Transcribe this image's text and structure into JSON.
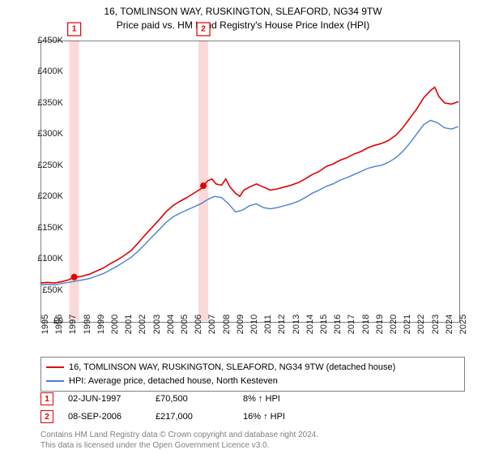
{
  "title_line1": "16, TOMLINSON WAY, RUSKINGTON, SLEAFORD, NG34 9TW",
  "title_line2": "Price paid vs. HM Land Registry's House Price Index (HPI)",
  "chart": {
    "type": "line",
    "background_color": "#ffffff",
    "grid_color": "#e8e8e8",
    "axis_color": "#808080",
    "yaxis": {
      "min": 0,
      "max": 450000,
      "step": 50000,
      "ticks": [
        "£0",
        "£50K",
        "£100K",
        "£150K",
        "£200K",
        "£250K",
        "£300K",
        "£350K",
        "£400K",
        "£450K"
      ],
      "fontsize": 11
    },
    "xaxis": {
      "min": 1995,
      "max": 2025,
      "step": 1,
      "ticks": [
        "1995",
        "1996",
        "1997",
        "1998",
        "1999",
        "2000",
        "2001",
        "2002",
        "2003",
        "2004",
        "2005",
        "2006",
        "2007",
        "2008",
        "2009",
        "2010",
        "2011",
        "2012",
        "2013",
        "2014",
        "2015",
        "2016",
        "2017",
        "2018",
        "2019",
        "2020",
        "2021",
        "2022",
        "2023",
        "2024",
        "2025"
      ],
      "fontsize": 11,
      "rotation": -90
    },
    "series": [
      {
        "name": "16, TOMLINSON WAY, RUSKINGTON, SLEAFORD, NG34 9TW (detached house)",
        "color": "#e00000",
        "line_width": 1.6,
        "data": [
          [
            1995.0,
            61000
          ],
          [
            1995.5,
            62000
          ],
          [
            1996.0,
            61000
          ],
          [
            1996.5,
            63000
          ],
          [
            1997.0,
            66000
          ],
          [
            1997.42,
            70500
          ],
          [
            1997.5,
            70000
          ],
          [
            1998.0,
            72000
          ],
          [
            1998.5,
            75000
          ],
          [
            1999.0,
            80000
          ],
          [
            1999.5,
            85000
          ],
          [
            2000.0,
            92000
          ],
          [
            2000.5,
            98000
          ],
          [
            2001.0,
            105000
          ],
          [
            2001.5,
            113000
          ],
          [
            2002.0,
            125000
          ],
          [
            2002.5,
            138000
          ],
          [
            2003.0,
            150000
          ],
          [
            2003.5,
            162000
          ],
          [
            2004.0,
            175000
          ],
          [
            2004.5,
            185000
          ],
          [
            2005.0,
            192000
          ],
          [
            2005.5,
            198000
          ],
          [
            2006.0,
            205000
          ],
          [
            2006.5,
            212000
          ],
          [
            2006.69,
            217000
          ],
          [
            2007.0,
            225000
          ],
          [
            2007.3,
            228000
          ],
          [
            2007.6,
            220000
          ],
          [
            2008.0,
            218000
          ],
          [
            2008.3,
            228000
          ],
          [
            2008.6,
            215000
          ],
          [
            2009.0,
            205000
          ],
          [
            2009.3,
            200000
          ],
          [
            2009.6,
            210000
          ],
          [
            2010.0,
            215000
          ],
          [
            2010.5,
            220000
          ],
          [
            2011.0,
            215000
          ],
          [
            2011.5,
            210000
          ],
          [
            2012.0,
            212000
          ],
          [
            2012.5,
            215000
          ],
          [
            2013.0,
            218000
          ],
          [
            2013.5,
            222000
          ],
          [
            2014.0,
            228000
          ],
          [
            2014.5,
            235000
          ],
          [
            2015.0,
            240000
          ],
          [
            2015.5,
            248000
          ],
          [
            2016.0,
            252000
          ],
          [
            2016.5,
            258000
          ],
          [
            2017.0,
            262000
          ],
          [
            2017.5,
            268000
          ],
          [
            2018.0,
            272000
          ],
          [
            2018.5,
            278000
          ],
          [
            2019.0,
            282000
          ],
          [
            2019.5,
            285000
          ],
          [
            2020.0,
            290000
          ],
          [
            2020.5,
            298000
          ],
          [
            2021.0,
            310000
          ],
          [
            2021.5,
            325000
          ],
          [
            2022.0,
            340000
          ],
          [
            2022.5,
            358000
          ],
          [
            2023.0,
            370000
          ],
          [
            2023.3,
            375000
          ],
          [
            2023.6,
            360000
          ],
          [
            2024.0,
            350000
          ],
          [
            2024.5,
            348000
          ],
          [
            2025.0,
            352000
          ]
        ]
      },
      {
        "name": "HPI: Average price, detached house, North Kesteven",
        "color": "#4a7fd0",
        "line_width": 1.4,
        "data": [
          [
            1995.0,
            58000
          ],
          [
            1995.5,
            59000
          ],
          [
            1996.0,
            58000
          ],
          [
            1996.5,
            60000
          ],
          [
            1997.0,
            62000
          ],
          [
            1997.5,
            64000
          ],
          [
            1998.0,
            66000
          ],
          [
            1998.5,
            68000
          ],
          [
            1999.0,
            72000
          ],
          [
            1999.5,
            76000
          ],
          [
            2000.0,
            82000
          ],
          [
            2000.5,
            88000
          ],
          [
            2001.0,
            95000
          ],
          [
            2001.5,
            102000
          ],
          [
            2002.0,
            112000
          ],
          [
            2002.5,
            123000
          ],
          [
            2003.0,
            135000
          ],
          [
            2003.5,
            146000
          ],
          [
            2004.0,
            158000
          ],
          [
            2004.5,
            167000
          ],
          [
            2005.0,
            173000
          ],
          [
            2005.5,
            178000
          ],
          [
            2006.0,
            183000
          ],
          [
            2006.5,
            188000
          ],
          [
            2007.0,
            195000
          ],
          [
            2007.5,
            200000
          ],
          [
            2008.0,
            198000
          ],
          [
            2008.5,
            188000
          ],
          [
            2009.0,
            175000
          ],
          [
            2009.5,
            178000
          ],
          [
            2010.0,
            185000
          ],
          [
            2010.5,
            188000
          ],
          [
            2011.0,
            182000
          ],
          [
            2011.5,
            180000
          ],
          [
            2012.0,
            182000
          ],
          [
            2012.5,
            185000
          ],
          [
            2013.0,
            188000
          ],
          [
            2013.5,
            192000
          ],
          [
            2014.0,
            198000
          ],
          [
            2014.5,
            205000
          ],
          [
            2015.0,
            210000
          ],
          [
            2015.5,
            216000
          ],
          [
            2016.0,
            220000
          ],
          [
            2016.5,
            226000
          ],
          [
            2017.0,
            230000
          ],
          [
            2017.5,
            235000
          ],
          [
            2018.0,
            240000
          ],
          [
            2018.5,
            245000
          ],
          [
            2019.0,
            248000
          ],
          [
            2019.5,
            250000
          ],
          [
            2020.0,
            255000
          ],
          [
            2020.5,
            262000
          ],
          [
            2021.0,
            272000
          ],
          [
            2021.5,
            285000
          ],
          [
            2022.0,
            300000
          ],
          [
            2022.5,
            315000
          ],
          [
            2023.0,
            322000
          ],
          [
            2023.5,
            318000
          ],
          [
            2024.0,
            310000
          ],
          [
            2024.5,
            308000
          ],
          [
            2025.0,
            312000
          ]
        ]
      }
    ],
    "sale_markers": [
      {
        "n": "1",
        "x": 1997.42,
        "y": 70500,
        "color": "#e00000"
      },
      {
        "n": "2",
        "x": 2006.69,
        "y": 217000,
        "color": "#e00000"
      }
    ],
    "shaded_bands": [
      {
        "x": 1997.42,
        "color": "#e00000"
      },
      {
        "x": 2006.69,
        "color": "#e00000"
      }
    ]
  },
  "legend": {
    "series1_label": "16, TOMLINSON WAY, RUSKINGTON, SLEAFORD, NG34 9TW (detached house)",
    "series1_color": "#e00000",
    "series2_label": "HPI: Average price, detached house, North Kesteven",
    "series2_color": "#4a7fd0"
  },
  "sales": [
    {
      "n": "1",
      "date": "02-JUN-1997",
      "price": "£70,500",
      "delta": "8% ↑ HPI",
      "color": "#e00000"
    },
    {
      "n": "2",
      "date": "08-SEP-2006",
      "price": "£217,000",
      "delta": "16% ↑ HPI",
      "color": "#e00000"
    }
  ],
  "credits_line1": "Contains HM Land Registry data © Crown copyright and database right 2024.",
  "credits_line2": "This data is licensed under the Open Government Licence v3.0."
}
